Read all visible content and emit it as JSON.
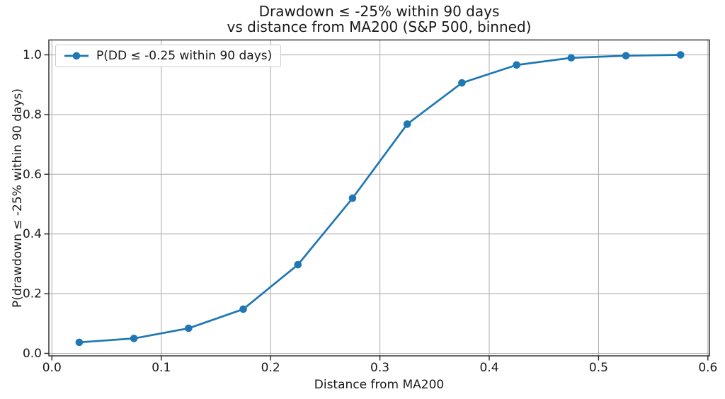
{
  "chart_data": {
    "type": "line",
    "title": "Drawdown ≤ -25% within 90 days\nvs distance from MA200 (S&P 500, binned)",
    "title_line1": "Drawdown ≤ -25% within 90 days",
    "title_line2": "vs distance from MA200 (S&P 500, binned)",
    "xlabel": "Distance from MA200",
    "ylabel": "P(drawdown ≤ -25% within 90 days)",
    "legend_label": "P(DD ≤ -0.25 within 90 days)",
    "legend_position": "upper left",
    "grid": true,
    "x": [
      0.025,
      0.075,
      0.125,
      0.175,
      0.225,
      0.275,
      0.325,
      0.375,
      0.425,
      0.475,
      0.525,
      0.575
    ],
    "series": [
      {
        "name": "P(DD ≤ -0.25 within 90 days)",
        "values": [
          0.037,
          0.05,
          0.084,
          0.148,
          0.297,
          0.52,
          0.768,
          0.906,
          0.966,
          0.99,
          0.997,
          1.0
        ],
        "color": "#1f77b4",
        "marker": "o",
        "linestyle": "solid"
      }
    ],
    "xlim": [
      -0.0028,
      0.6014
    ],
    "ylim": [
      -0.0083,
      1.0498
    ],
    "x_ticks": [
      0.0,
      0.1,
      0.2,
      0.3,
      0.4,
      0.5,
      0.6
    ],
    "y_ticks": [
      0.0,
      0.2,
      0.4,
      0.6,
      0.8,
      1.0
    ],
    "tick_decimals": 1,
    "colors": {
      "line": "#1f77b4",
      "grid": "#b0b0b0",
      "spine": "#262626",
      "text": "#1a1a1a",
      "background": "#ffffff",
      "legend_border": "#cccccc"
    }
  }
}
